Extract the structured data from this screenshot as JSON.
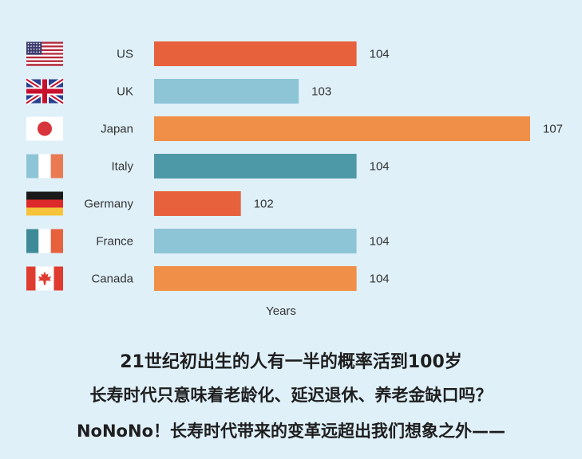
{
  "chart_data": {
    "type": "bar",
    "orientation": "horizontal",
    "categories": [
      "US",
      "UK",
      "Japan",
      "Italy",
      "Germany",
      "France",
      "Canada"
    ],
    "values": [
      104,
      103,
      107,
      104,
      102,
      104,
      104
    ],
    "bar_colors": [
      "#e8613d",
      "#8ec5d6",
      "#f08f47",
      "#4e99a8",
      "#e8613d",
      "#8ec5d6",
      "#f08f47"
    ],
    "flag_icons": [
      "us-flag-icon",
      "uk-flag-icon",
      "japan-flag-icon",
      "italy-flag-icon",
      "germany-flag-icon",
      "france-flag-icon",
      "canada-flag-icon"
    ],
    "xlabel": "Years",
    "xlim": [
      100.5,
      107
    ],
    "grid": false,
    "legend": "none"
  },
  "caption": {
    "line1": "21世纪初出生的人有一半的概率活到100岁",
    "line2": "长寿时代只意味着老龄化、延迟退休、养老金缺口吗？",
    "line3": "NoNoNo！长寿时代带来的变革远超出我们想象之外——"
  }
}
